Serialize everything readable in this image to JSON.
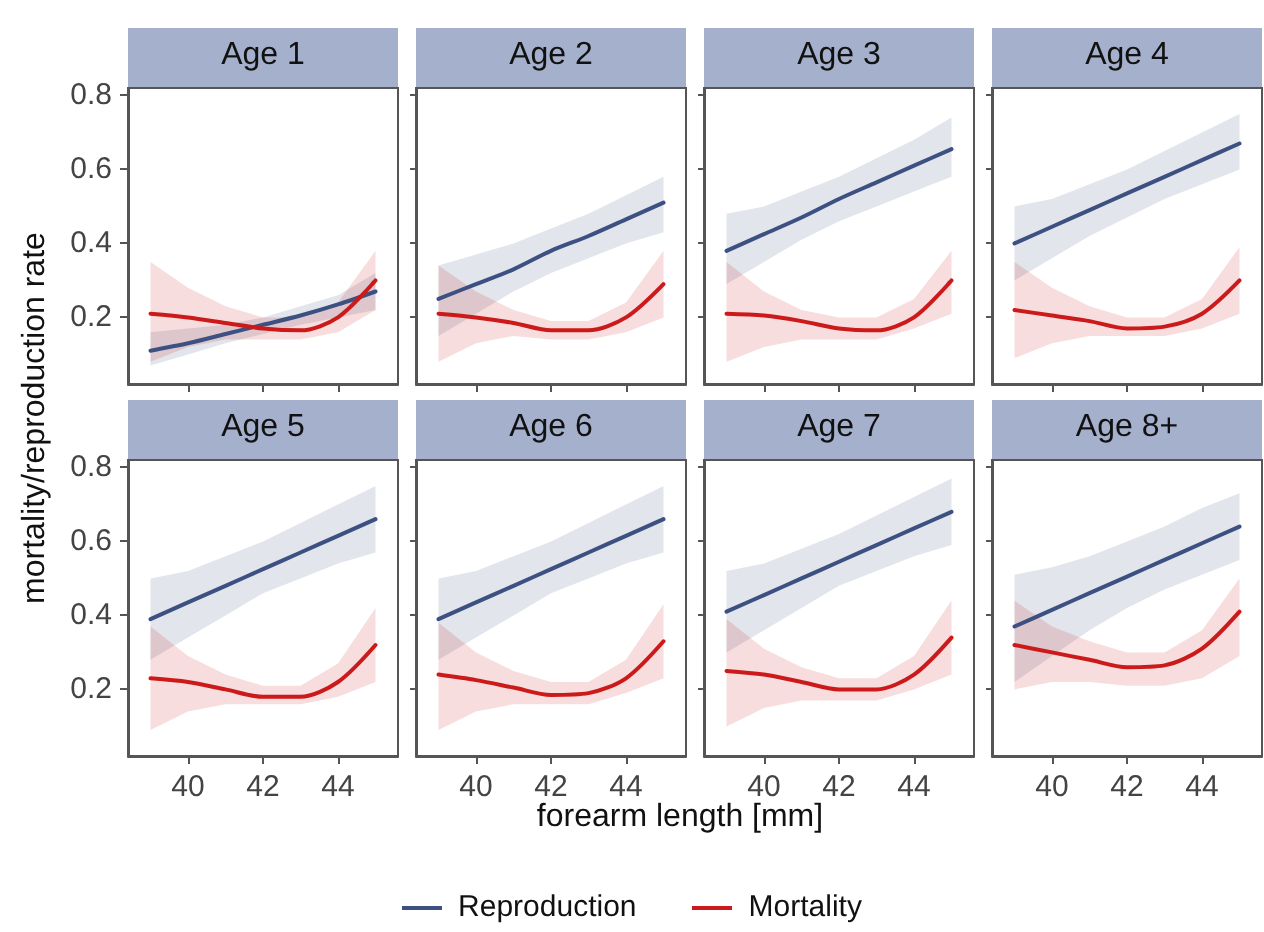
{
  "chart_data": [
    {
      "type": "line",
      "title": "Age 1",
      "ylabel": "mortality/reproduction rate",
      "xlabel": "forearm length [mm]",
      "legend": "bottom",
      "tick_labels": "y",
      "xlim": [
        38.4,
        45.6
      ],
      "xticks": [
        40,
        42,
        44
      ],
      "ylim": [
        0.02,
        0.82
      ],
      "yticks": [
        0.2,
        0.4,
        0.6,
        0.8
      ],
      "x": [
        39,
        40,
        41,
        42,
        43,
        44,
        45
      ],
      "series": [
        {
          "name": "Reproduction",
          "color": "#3d5082",
          "values": [
            0.11,
            0.13,
            0.155,
            0.18,
            0.205,
            0.235,
            0.27
          ],
          "lower": [
            0.07,
            0.1,
            0.13,
            0.155,
            0.18,
            0.2,
            0.22
          ],
          "upper": [
            0.16,
            0.17,
            0.18,
            0.2,
            0.23,
            0.26,
            0.32
          ]
        },
        {
          "name": "Mortality",
          "color": "#cc1a1a",
          "values": [
            0.21,
            0.2,
            0.185,
            0.17,
            0.165,
            0.2,
            0.3
          ],
          "lower": [
            0.08,
            0.12,
            0.14,
            0.14,
            0.14,
            0.16,
            0.22
          ],
          "upper": [
            0.35,
            0.28,
            0.23,
            0.2,
            0.2,
            0.24,
            0.38
          ]
        }
      ]
    },
    {
      "type": "line",
      "title": "Age 2",
      "tick_labels": false,
      "xlim": [
        38.4,
        45.6
      ],
      "xticks": [
        40,
        42,
        44
      ],
      "ylim": [
        0.02,
        0.82
      ],
      "yticks": [
        0.2,
        0.4,
        0.6,
        0.8
      ],
      "x": [
        39,
        40,
        41,
        42,
        43,
        44,
        45
      ],
      "series": [
        {
          "color": "#3d5082",
          "values": [
            0.25,
            0.29,
            0.33,
            0.38,
            0.42,
            0.465,
            0.51
          ],
          "lower": [
            0.15,
            0.21,
            0.27,
            0.32,
            0.36,
            0.4,
            0.43
          ],
          "upper": [
            0.34,
            0.37,
            0.4,
            0.44,
            0.48,
            0.53,
            0.58
          ]
        },
        {
          "color": "#cc1a1a",
          "values": [
            0.21,
            0.2,
            0.185,
            0.165,
            0.165,
            0.2,
            0.29
          ],
          "lower": [
            0.08,
            0.13,
            0.15,
            0.14,
            0.14,
            0.16,
            0.2
          ],
          "upper": [
            0.34,
            0.27,
            0.22,
            0.19,
            0.19,
            0.24,
            0.38
          ]
        }
      ]
    },
    {
      "type": "line",
      "title": "Age 3",
      "tick_labels": false,
      "xlim": [
        38.4,
        45.6
      ],
      "xticks": [
        40,
        42,
        44
      ],
      "ylim": [
        0.02,
        0.82
      ],
      "yticks": [
        0.2,
        0.4,
        0.6,
        0.8
      ],
      "x": [
        39,
        40,
        41,
        42,
        43,
        44,
        45
      ],
      "series": [
        {
          "color": "#3d5082",
          "values": [
            0.38,
            0.425,
            0.47,
            0.52,
            0.565,
            0.61,
            0.655
          ],
          "lower": [
            0.29,
            0.35,
            0.41,
            0.46,
            0.5,
            0.54,
            0.58
          ],
          "upper": [
            0.48,
            0.5,
            0.54,
            0.58,
            0.63,
            0.68,
            0.74
          ]
        },
        {
          "color": "#cc1a1a",
          "values": [
            0.21,
            0.205,
            0.19,
            0.17,
            0.165,
            0.2,
            0.3
          ],
          "lower": [
            0.08,
            0.12,
            0.14,
            0.14,
            0.14,
            0.17,
            0.21
          ],
          "upper": [
            0.35,
            0.27,
            0.22,
            0.2,
            0.2,
            0.25,
            0.38
          ]
        }
      ]
    },
    {
      "type": "line",
      "title": "Age 4",
      "tick_labels": false,
      "xlim": [
        38.4,
        45.6
      ],
      "xticks": [
        40,
        42,
        44
      ],
      "ylim": [
        0.02,
        0.82
      ],
      "yticks": [
        0.2,
        0.4,
        0.6,
        0.8
      ],
      "x": [
        39,
        40,
        41,
        42,
        43,
        44,
        45
      ],
      "series": [
        {
          "color": "#3d5082",
          "values": [
            0.4,
            0.445,
            0.49,
            0.535,
            0.58,
            0.625,
            0.67
          ],
          "lower": [
            0.3,
            0.36,
            0.42,
            0.47,
            0.52,
            0.56,
            0.6
          ],
          "upper": [
            0.5,
            0.52,
            0.56,
            0.6,
            0.65,
            0.7,
            0.75
          ]
        },
        {
          "color": "#cc1a1a",
          "values": [
            0.22,
            0.205,
            0.19,
            0.17,
            0.175,
            0.21,
            0.3
          ],
          "lower": [
            0.09,
            0.13,
            0.15,
            0.15,
            0.15,
            0.17,
            0.21
          ],
          "upper": [
            0.35,
            0.28,
            0.23,
            0.2,
            0.2,
            0.25,
            0.39
          ]
        }
      ]
    },
    {
      "type": "line",
      "title": "Age 5",
      "xlim": [
        38.4,
        45.6
      ],
      "xticks": [
        40,
        42,
        44
      ],
      "ylim": [
        0.02,
        0.82
      ],
      "yticks": [
        0.2,
        0.4,
        0.6,
        0.8
      ],
      "x": [
        39,
        40,
        41,
        42,
        43,
        44,
        45
      ],
      "series": [
        {
          "color": "#3d5082",
          "values": [
            0.39,
            0.435,
            0.48,
            0.525,
            0.57,
            0.615,
            0.66
          ],
          "lower": [
            0.28,
            0.34,
            0.4,
            0.46,
            0.5,
            0.54,
            0.57
          ],
          "upper": [
            0.5,
            0.52,
            0.56,
            0.6,
            0.65,
            0.7,
            0.75
          ]
        },
        {
          "color": "#cc1a1a",
          "values": [
            0.23,
            0.22,
            0.2,
            0.18,
            0.18,
            0.22,
            0.32
          ],
          "lower": [
            0.09,
            0.14,
            0.16,
            0.16,
            0.16,
            0.18,
            0.22
          ],
          "upper": [
            0.37,
            0.29,
            0.24,
            0.21,
            0.21,
            0.27,
            0.42
          ]
        }
      ]
    },
    {
      "type": "line",
      "title": "Age 6",
      "tick_labels": "x",
      "xlim": [
        38.4,
        45.6
      ],
      "xticks": [
        40,
        42,
        44
      ],
      "ylim": [
        0.02,
        0.82
      ],
      "yticks": [
        0.2,
        0.4,
        0.6,
        0.8
      ],
      "x": [
        39,
        40,
        41,
        42,
        43,
        44,
        45
      ],
      "series": [
        {
          "color": "#3d5082",
          "values": [
            0.39,
            0.435,
            0.48,
            0.525,
            0.57,
            0.615,
            0.66
          ],
          "lower": [
            0.28,
            0.34,
            0.4,
            0.46,
            0.5,
            0.54,
            0.57
          ],
          "upper": [
            0.5,
            0.52,
            0.56,
            0.6,
            0.65,
            0.7,
            0.75
          ]
        },
        {
          "color": "#cc1a1a",
          "values": [
            0.24,
            0.225,
            0.205,
            0.185,
            0.19,
            0.23,
            0.33
          ],
          "lower": [
            0.09,
            0.14,
            0.16,
            0.16,
            0.16,
            0.19,
            0.23
          ],
          "upper": [
            0.38,
            0.3,
            0.25,
            0.22,
            0.22,
            0.28,
            0.43
          ]
        }
      ]
    },
    {
      "type": "line",
      "title": "Age 7",
      "tick_labels": "x",
      "xlim": [
        38.4,
        45.6
      ],
      "xticks": [
        40,
        42,
        44
      ],
      "ylim": [
        0.02,
        0.82
      ],
      "yticks": [
        0.2,
        0.4,
        0.6,
        0.8
      ],
      "x": [
        39,
        40,
        41,
        42,
        43,
        44,
        45
      ],
      "series": [
        {
          "color": "#3d5082",
          "values": [
            0.41,
            0.455,
            0.5,
            0.545,
            0.59,
            0.635,
            0.68
          ],
          "lower": [
            0.3,
            0.36,
            0.42,
            0.48,
            0.52,
            0.56,
            0.59
          ],
          "upper": [
            0.52,
            0.54,
            0.58,
            0.62,
            0.67,
            0.72,
            0.77
          ]
        },
        {
          "color": "#cc1a1a",
          "values": [
            0.25,
            0.24,
            0.22,
            0.2,
            0.2,
            0.24,
            0.34
          ],
          "lower": [
            0.1,
            0.15,
            0.17,
            0.17,
            0.17,
            0.2,
            0.24
          ],
          "upper": [
            0.39,
            0.31,
            0.26,
            0.23,
            0.23,
            0.29,
            0.44
          ]
        }
      ]
    },
    {
      "type": "line",
      "title": "Age 8+",
      "tick_labels": "x",
      "xlim": [
        38.4,
        45.6
      ],
      "xticks": [
        40,
        42,
        44
      ],
      "ylim": [
        0.02,
        0.82
      ],
      "yticks": [
        0.2,
        0.4,
        0.6,
        0.8
      ],
      "x": [
        39,
        40,
        41,
        42,
        43,
        44,
        45
      ],
      "series": [
        {
          "color": "#3d5082",
          "values": [
            0.37,
            0.415,
            0.46,
            0.505,
            0.55,
            0.595,
            0.64
          ],
          "lower": [
            0.22,
            0.29,
            0.36,
            0.42,
            0.47,
            0.51,
            0.55
          ],
          "upper": [
            0.51,
            0.53,
            0.56,
            0.6,
            0.64,
            0.69,
            0.73
          ]
        },
        {
          "color": "#cc1a1a",
          "values": [
            0.32,
            0.3,
            0.28,
            0.26,
            0.265,
            0.31,
            0.41
          ],
          "lower": [
            0.2,
            0.22,
            0.22,
            0.21,
            0.21,
            0.23,
            0.29
          ],
          "upper": [
            0.44,
            0.37,
            0.33,
            0.3,
            0.3,
            0.36,
            0.5
          ]
        }
      ]
    }
  ]
}
